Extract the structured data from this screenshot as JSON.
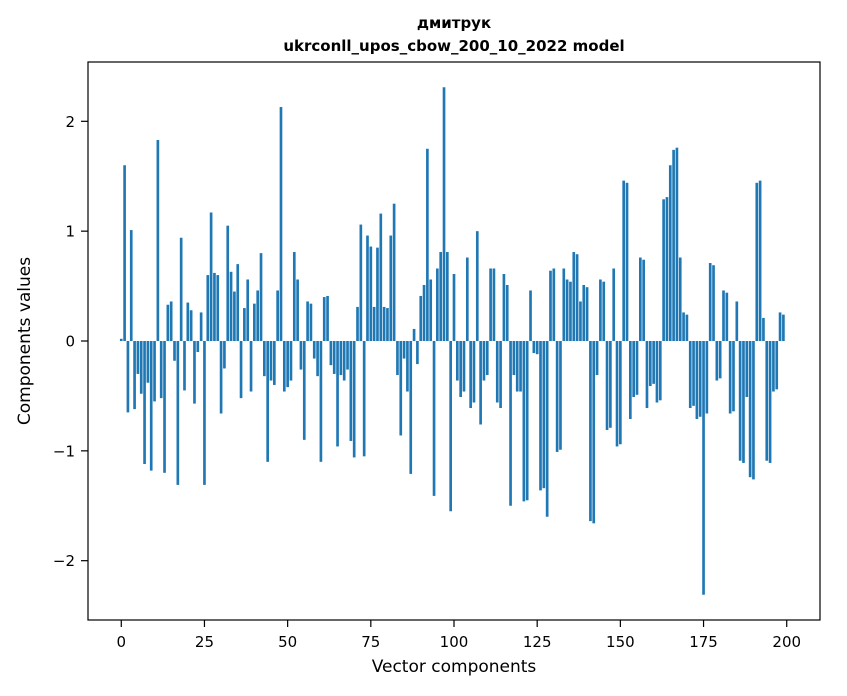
{
  "figure": {
    "title_line1": "дмитрук",
    "title_line2": "ukrconll_upos_cbow_200_10_2022 model",
    "xlabel": "Vector components",
    "ylabel": "Components values"
  },
  "chart_data": {
    "type": "bar",
    "title": "дмитрук\nukrconll_upos_cbow_200_10_2022 model",
    "xlabel": "Vector components",
    "ylabel": "Components values",
    "bar_color": "#1f77b4",
    "grid": false,
    "legend": null,
    "xlim": [
      -10,
      210
    ],
    "ylim": [
      -2.54,
      2.54
    ],
    "x_ticks": [
      0,
      25,
      50,
      75,
      100,
      125,
      150,
      175,
      200
    ],
    "y_ticks": [
      -2,
      -1,
      0,
      1,
      2
    ],
    "x_start": 0,
    "bar_width": 0.8,
    "values": [
      0.02,
      1.6,
      -0.65,
      1.01,
      -0.62,
      -0.3,
      -0.48,
      -1.12,
      -0.38,
      -1.18,
      -0.55,
      1.83,
      -0.52,
      -1.2,
      0.33,
      0.36,
      -0.18,
      -1.31,
      0.94,
      -0.45,
      0.35,
      0.28,
      -0.57,
      -0.1,
      0.26,
      -1.31,
      0.6,
      1.17,
      0.62,
      0.6,
      -0.66,
      -0.25,
      1.05,
      0.63,
      0.45,
      0.7,
      -0.52,
      0.3,
      0.56,
      -0.46,
      0.34,
      0.46,
      0.8,
      -0.32,
      -1.1,
      -0.36,
      -0.4,
      0.46,
      2.13,
      -0.46,
      -0.42,
      -0.36,
      0.81,
      0.56,
      -0.26,
      -0.9,
      0.36,
      0.34,
      -0.16,
      -0.32,
      -1.1,
      0.4,
      0.41,
      -0.22,
      -0.3,
      -0.96,
      -0.31,
      -0.36,
      -0.26,
      -0.91,
      -1.06,
      0.31,
      1.06,
      -1.05,
      0.96,
      0.86,
      0.31,
      0.85,
      1.16,
      0.31,
      0.3,
      0.96,
      1.25,
      -0.31,
      -0.86,
      -0.16,
      -0.46,
      -1.21,
      0.11,
      -0.21,
      0.41,
      0.51,
      1.75,
      0.56,
      -1.41,
      0.66,
      0.81,
      2.31,
      0.81,
      -1.55,
      0.61,
      -0.36,
      -0.51,
      -0.46,
      0.76,
      -0.61,
      -0.56,
      1.0,
      -0.76,
      -0.36,
      -0.31,
      0.66,
      0.66,
      -0.56,
      -0.61,
      0.61,
      0.51,
      -1.5,
      -0.31,
      -0.46,
      -0.46,
      -1.46,
      -1.45,
      0.46,
      -0.11,
      -0.12,
      -1.36,
      -1.34,
      -1.6,
      0.64,
      0.66,
      -1.01,
      -0.99,
      0.66,
      0.56,
      0.54,
      0.81,
      0.79,
      0.36,
      0.51,
      0.49,
      -1.64,
      -1.66,
      -0.31,
      0.56,
      0.54,
      -0.81,
      -0.79,
      0.66,
      -0.96,
      -0.94,
      1.46,
      1.44,
      -0.71,
      -0.51,
      -0.49,
      0.76,
      0.74,
      -0.61,
      -0.41,
      -0.39,
      -0.56,
      -0.54,
      1.29,
      1.31,
      1.6,
      1.74,
      1.76,
      0.76,
      0.26,
      0.24,
      -0.61,
      -0.59,
      -0.71,
      -0.69,
      -2.31,
      -0.66,
      0.71,
      0.69,
      -0.36,
      -0.34,
      0.46,
      0.44,
      -0.66,
      -0.64,
      0.36,
      -1.09,
      -1.11,
      -0.51,
      -1.24,
      -1.26,
      1.44,
      1.46,
      0.21,
      -1.09,
      -1.11,
      -0.46,
      -0.44,
      0.26,
      0.24
    ]
  }
}
